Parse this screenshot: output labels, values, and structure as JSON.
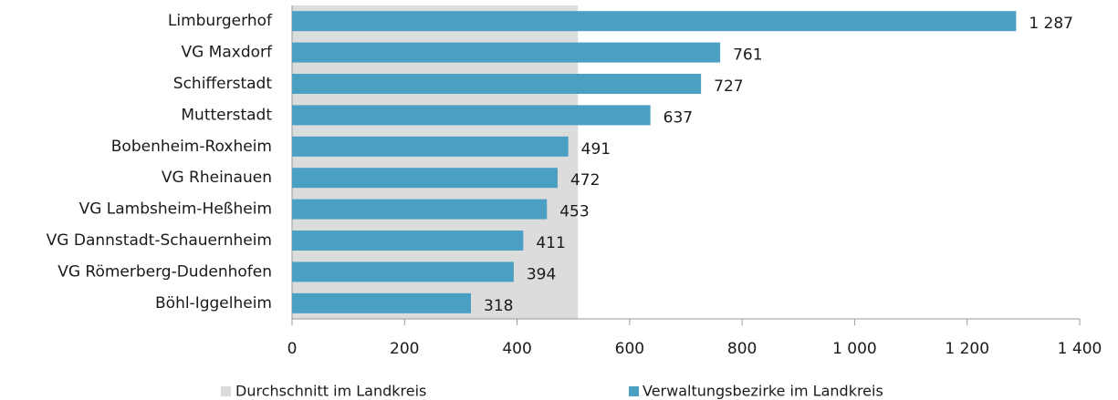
{
  "chart_data": {
    "type": "bar",
    "orientation": "horizontal",
    "categories": [
      "Limburgerhof",
      "VG Maxdorf",
      "Schifferstadt",
      "Mutterstadt",
      "Bobenheim-Roxheim",
      "VG Rheinauen",
      "VG Lambsheim-Heßheim",
      "VG Dannstadt-Schauernheim",
      "VG Römerberg-Dudenhofen",
      "Böhl-Iggelheim"
    ],
    "series": [
      {
        "name": "Verwaltungsbezirke im Landkreis",
        "color": "#4b9fc3",
        "values": [
          1287,
          761,
          727,
          637,
          491,
          472,
          453,
          411,
          394,
          318
        ],
        "value_labels": [
          "1 287",
          "761",
          "727",
          "637",
          "491",
          "472",
          "453",
          "411",
          "394",
          "318"
        ]
      }
    ],
    "average": {
      "name": "Durchschnitt im Landkreis",
      "color": "#dcdcdc",
      "value": 508
    },
    "xlim": [
      0,
      1400
    ],
    "xticks": [
      0,
      200,
      400,
      600,
      800,
      {
        "value": 1000,
        "label": "1 000"
      },
      {
        "value": 1200,
        "label": "1 200"
      },
      {
        "value": 1400,
        "label": "1 400"
      }
    ],
    "label_color": "#1f7ea8"
  }
}
